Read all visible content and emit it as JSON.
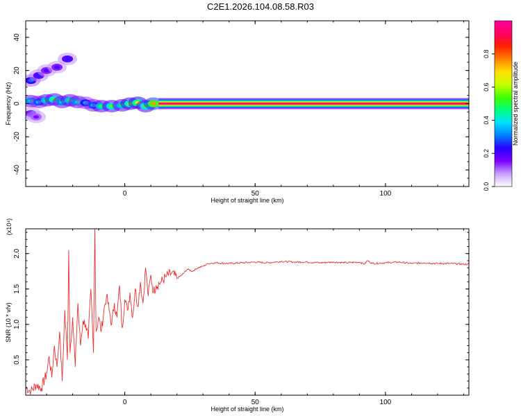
{
  "title": "C2E1.2026.104.08.58.R03",
  "chart_data": [
    {
      "type": "heatmap",
      "xlabel": "Height of straight line (km)",
      "ylabel": "Frequency (Hz)",
      "xlim": [
        -38,
        132
      ],
      "ylim": [
        -50,
        50
      ],
      "xticks": [
        0,
        50,
        100
      ],
      "yticks": [
        -40,
        -20,
        0,
        20,
        40
      ],
      "colorbar": {
        "label": "Normalized spectral amplitude",
        "range": [
          0,
          1
        ],
        "ticks": [
          "0.0",
          "0.2",
          "0.4",
          "0.6",
          "0.8"
        ],
        "colormap": [
          "#ffffff",
          "#c8a0ff",
          "#7a00ff",
          "#2a00ff",
          "#0080ff",
          "#00e0ff",
          "#00ff80",
          "#40ff00",
          "#c8ff00",
          "#ffe000",
          "#ff8000",
          "#ff2000",
          "#ff0060",
          "#ff00a0"
        ]
      },
      "main_line": {
        "x_start": 13,
        "x_end": 132,
        "frequency": 0,
        "amplitude": 1.0
      },
      "blobs": [
        {
          "x": -36,
          "y": 1.5,
          "v": 0.45
        },
        {
          "x": -33,
          "y": 1,
          "v": 0.4
        },
        {
          "x": -30,
          "y": 2,
          "v": 0.5
        },
        {
          "x": -27,
          "y": 2.5,
          "v": 0.55
        },
        {
          "x": -24,
          "y": 1,
          "v": 0.45
        },
        {
          "x": -21,
          "y": 2,
          "v": 0.5
        },
        {
          "x": -18,
          "y": 1,
          "v": 0.45
        },
        {
          "x": -15,
          "y": 0.5,
          "v": 0.35
        },
        {
          "x": -12,
          "y": -1,
          "v": 0.4
        },
        {
          "x": -9,
          "y": -1.5,
          "v": 0.5
        },
        {
          "x": -5,
          "y": -1.5,
          "v": 0.55
        },
        {
          "x": -1,
          "y": -1,
          "v": 0.5
        },
        {
          "x": 2,
          "y": 0,
          "v": 0.6
        },
        {
          "x": 5,
          "y": 0.5,
          "v": 0.65
        },
        {
          "x": 8,
          "y": -1.5,
          "v": 0.55
        },
        {
          "x": 11,
          "y": 0,
          "v": 0.75
        },
        {
          "x": -36,
          "y": 14,
          "v": 0.3
        },
        {
          "x": -33,
          "y": 17,
          "v": 0.25
        },
        {
          "x": -30,
          "y": 20,
          "v": 0.2
        },
        {
          "x": -26,
          "y": 22,
          "v": 0.2
        },
        {
          "x": -22,
          "y": 27,
          "v": 0.25
        },
        {
          "x": -36,
          "y": -6,
          "v": 0.2
        },
        {
          "x": -34,
          "y": -8,
          "v": 0.15
        }
      ]
    },
    {
      "type": "line",
      "xlabel": "Height of straight line (km)",
      "ylabel": "SNR (10 * v/v)",
      "multiplier": "(x10⁴)",
      "xlim": [
        -38,
        132
      ],
      "ylim": [
        0,
        2.35
      ],
      "xticks": [
        0,
        50,
        100
      ],
      "yticks": [
        "0.5",
        "1.0",
        "1.5",
        "2.0"
      ],
      "color": "#e83030",
      "series": [
        {
          "x": [
            -38,
            -36,
            -34,
            -32,
            -30,
            -29,
            -28,
            -27,
            -26,
            -25,
            -24,
            -23,
            -22,
            -21.5,
            -21,
            -20,
            -19,
            -18,
            -17,
            -16,
            -15,
            -14,
            -13,
            -12,
            -11.5,
            -11,
            -10,
            -9,
            -8,
            -7,
            -6,
            -5,
            -4,
            -3,
            -2,
            -1,
            0,
            1,
            2,
            3,
            4,
            5,
            6,
            7,
            8,
            9,
            10,
            11,
            12,
            14,
            16,
            18,
            20,
            22,
            24,
            26,
            28,
            30,
            32,
            35,
            40,
            45,
            50,
            55,
            60,
            65,
            70,
            75,
            80,
            85,
            90,
            92,
            93,
            95,
            100,
            105,
            110,
            115,
            120,
            125,
            130,
            132
          ],
          "y": [
            0.12,
            0.05,
            0.15,
            0.1,
            0.3,
            0.55,
            0.25,
            0.7,
            0.4,
            0.9,
            0.2,
            1.2,
            0.5,
            2.05,
            0.6,
            1.1,
            0.4,
            1.3,
            0.7,
            1.05,
            1.0,
            0.8,
            1.5,
            0.6,
            2.35,
            0.9,
            1.1,
            0.9,
            1.2,
            1.4,
            1.2,
            1.0,
            1.3,
            1.1,
            1.55,
            0.95,
            1.35,
            1.2,
            1.45,
            1.1,
            1.5,
            1.25,
            1.6,
            1.3,
            1.8,
            1.4,
            1.7,
            1.45,
            1.55,
            1.6,
            1.68,
            1.72,
            1.65,
            1.7,
            1.78,
            1.75,
            1.8,
            1.82,
            1.86,
            1.87,
            1.86,
            1.87,
            1.88,
            1.87,
            1.89,
            1.88,
            1.88,
            1.87,
            1.88,
            1.87,
            1.88,
            1.85,
            1.9,
            1.86,
            1.87,
            1.88,
            1.86,
            1.87,
            1.86,
            1.86,
            1.85,
            1.85
          ]
        }
      ]
    }
  ]
}
